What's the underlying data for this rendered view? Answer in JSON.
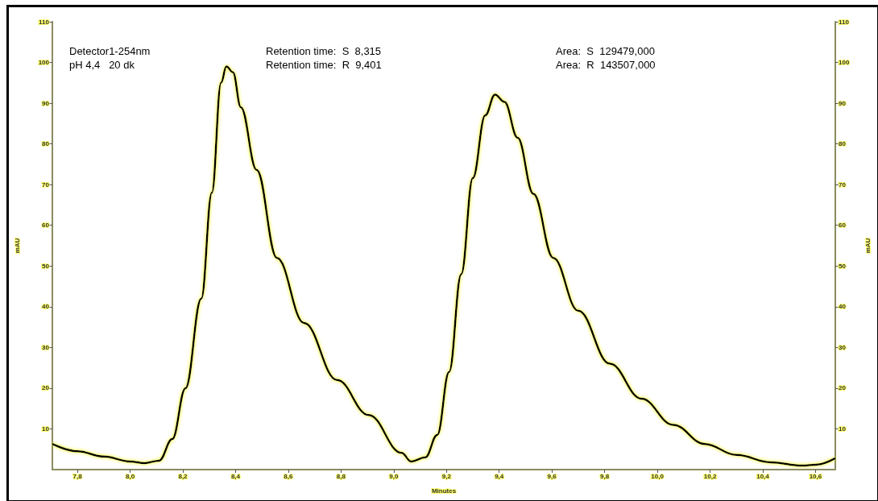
{
  "chart_data": {
    "type": "line",
    "xlabel": "Minutes",
    "ylabel": "mAU",
    "y2label": "mAU",
    "annotations": [
      "Detector1-254nm",
      "pH 4,4   20 dk",
      "Retention time:  S  8,315",
      "Retention time:  R  9,401",
      "Area:  S  129479,000",
      "Area:  R  143507,000"
    ],
    "series": [
      {
        "color": "#000000",
        "x": [
          7.705,
          7.8,
          7.9,
          8.0,
          8.055,
          8.11,
          8.16,
          8.21,
          8.27,
          8.31,
          8.345,
          8.365,
          8.39,
          8.42,
          8.48,
          8.557,
          8.66,
          8.785,
          8.905,
          9.03,
          9.066,
          9.12,
          9.165,
          9.21,
          9.256,
          9.3,
          9.347,
          9.384,
          9.42,
          9.47,
          9.53,
          9.605,
          9.7,
          9.82,
          9.94,
          10.06,
          10.18,
          10.3,
          10.43,
          10.55,
          10.6,
          10.675
        ],
        "values": [
          6.3,
          4.5,
          3.2,
          2.0,
          1.6,
          2.2,
          7.5,
          20,
          42,
          68,
          95,
          99,
          97.6,
          89,
          73.6,
          52,
          36,
          22,
          13.4,
          4.1,
          2.0,
          3.0,
          8.5,
          24,
          48,
          71.6,
          87,
          92.1,
          90.3,
          81.5,
          67.7,
          52,
          39,
          26,
          17.4,
          11,
          6.3,
          3.6,
          1.8,
          1.0,
          1.2,
          2.8
        ]
      }
    ],
    "xlim": [
      7.705,
      10.675
    ],
    "xticks": [
      {
        "value": 7.8,
        "label": "7,8"
      },
      {
        "value": 8.0,
        "label": "8,0"
      },
      {
        "value": 8.2,
        "label": "8,2"
      },
      {
        "value": 8.4,
        "label": "8,4"
      },
      {
        "value": 8.6,
        "label": "8,6"
      },
      {
        "value": 8.8,
        "label": "8,8"
      },
      {
        "value": 9.0,
        "label": "9,0"
      },
      {
        "value": 9.2,
        "label": "9,2"
      },
      {
        "value": 9.4,
        "label": "9,4"
      },
      {
        "value": 9.6,
        "label": "9,6"
      },
      {
        "value": 9.8,
        "label": "9,8"
      },
      {
        "value": 10.0,
        "label": "10,0"
      },
      {
        "value": 10.2,
        "label": "10,2"
      },
      {
        "value": 10.4,
        "label": "10,4"
      },
      {
        "value": 10.6,
        "label": "10,6"
      }
    ],
    "ylim": [
      0,
      110
    ],
    "yticks": [
      10,
      20,
      30,
      40,
      50,
      60,
      70,
      80,
      90,
      100,
      110
    ],
    "y2lim": [
      0,
      110
    ],
    "y2ticks": [
      10,
      20,
      30,
      40,
      50,
      60,
      70,
      80,
      90,
      100,
      110
    ],
    "grid": false,
    "marker": "none",
    "line_style": "solid"
  }
}
